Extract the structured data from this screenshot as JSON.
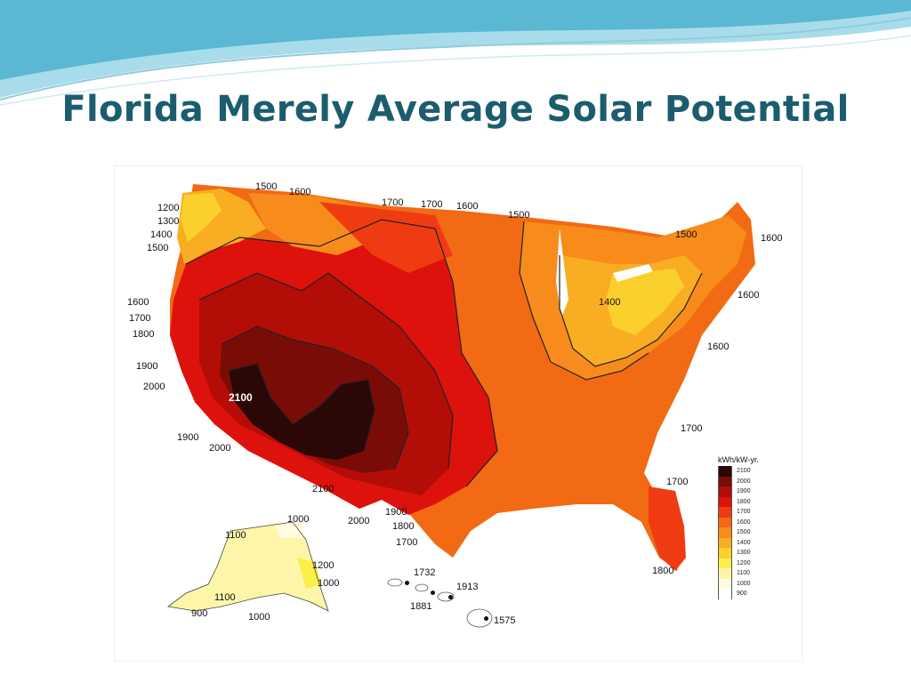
{
  "slide": {
    "title": "Florida Merely Average Solar Potential"
  },
  "map": {
    "contour_labels": [
      {
        "id": "nw-1200",
        "text": "1200"
      },
      {
        "id": "nw-1300",
        "text": "1300"
      },
      {
        "id": "nw-1400",
        "text": "1400"
      },
      {
        "id": "nw-1500",
        "text": "1500"
      },
      {
        "id": "n-1500",
        "text": "1500"
      },
      {
        "id": "n-1600",
        "text": "1600"
      },
      {
        "id": "n-1700a",
        "text": "1700"
      },
      {
        "id": "n-1700b",
        "text": "1700"
      },
      {
        "id": "n-1600b",
        "text": "1600"
      },
      {
        "id": "gl-1500",
        "text": "1500"
      },
      {
        "id": "ne-1500",
        "text": "1500"
      },
      {
        "id": "ne-1600",
        "text": "1600"
      },
      {
        "id": "w-1600",
        "text": "1600"
      },
      {
        "id": "w-1700",
        "text": "1700"
      },
      {
        "id": "w-1800",
        "text": "1800"
      },
      {
        "id": "w-1900",
        "text": "1900"
      },
      {
        "id": "w-2000",
        "text": "2000"
      },
      {
        "id": "sw-2100",
        "text": "2100"
      },
      {
        "id": "sw-1900",
        "text": "1900"
      },
      {
        "id": "sw-2000",
        "text": "2000"
      },
      {
        "id": "s-2100",
        "text": "2100"
      },
      {
        "id": "s-2000",
        "text": "2000"
      },
      {
        "id": "s-1900",
        "text": "1900"
      },
      {
        "id": "s-1800",
        "text": "1800"
      },
      {
        "id": "s-1700",
        "text": "1700"
      },
      {
        "id": "oh-1400",
        "text": "1400"
      },
      {
        "id": "e-1600",
        "text": "1600"
      },
      {
        "id": "ne-1600b",
        "text": "1600"
      },
      {
        "id": "se-1700a",
        "text": "1700"
      },
      {
        "id": "se-1700b",
        "text": "1700"
      },
      {
        "id": "fl-1800",
        "text": "1800"
      },
      {
        "id": "ak-1000",
        "text": "1000"
      },
      {
        "id": "ak-1100",
        "text": "1100"
      },
      {
        "id": "ak-1200",
        "text": "1200"
      },
      {
        "id": "ak-1000b",
        "text": "1000"
      },
      {
        "id": "ak-1100b",
        "text": "1100"
      },
      {
        "id": "ak-900",
        "text": "900"
      },
      {
        "id": "ak-1000c",
        "text": "1000"
      },
      {
        "id": "hi-1732",
        "text": "1732"
      },
      {
        "id": "hi-1913",
        "text": "1913"
      },
      {
        "id": "hi-1881",
        "text": "1881"
      },
      {
        "id": "hi-1575",
        "text": "1575"
      }
    ]
  },
  "legend": {
    "title": "kWh/kW-yr.",
    "items": [
      {
        "value": "2100",
        "color": "#2b0705"
      },
      {
        "value": "2000",
        "color": "#7a0c08"
      },
      {
        "value": "1900",
        "color": "#b30d08"
      },
      {
        "value": "1800",
        "color": "#dd120c"
      },
      {
        "value": "1700",
        "color": "#ef3b12"
      },
      {
        "value": "1600",
        "color": "#f26a13"
      },
      {
        "value": "1500",
        "color": "#f78c1c"
      },
      {
        "value": "1400",
        "color": "#f9ad23"
      },
      {
        "value": "1300",
        "color": "#fbd02c"
      },
      {
        "value": "1200",
        "color": "#fcee4a"
      },
      {
        "value": "1100",
        "color": "#fdf6a8"
      },
      {
        "value": "1000",
        "color": "#fefbe0"
      },
      {
        "value": "900",
        "color": "#ffffff"
      }
    ]
  }
}
